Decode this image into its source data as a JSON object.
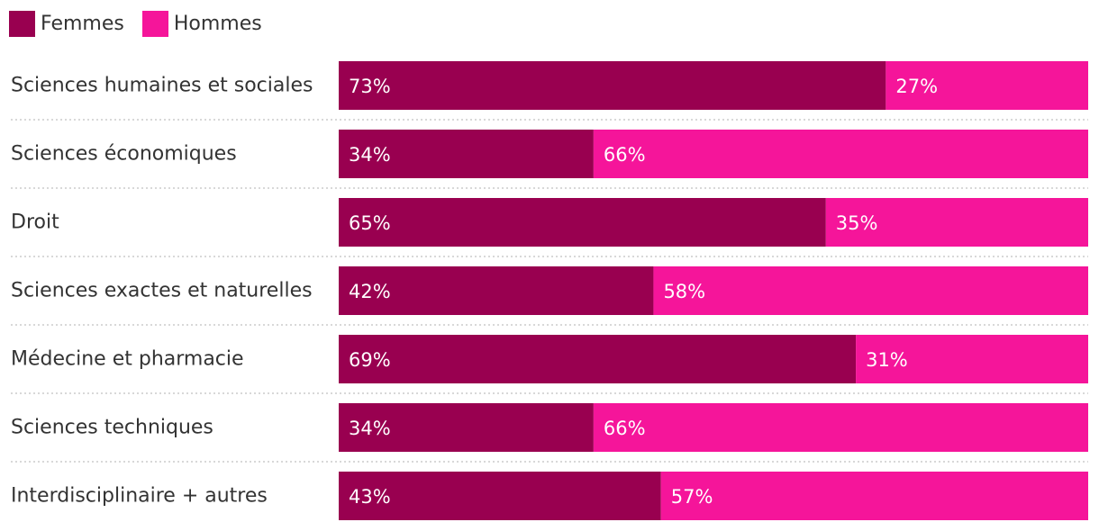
{
  "colors": {
    "femmes": "#990050",
    "hommes": "#f5159a",
    "separator": "#cccccc",
    "label_text": "#ffffff"
  },
  "legend": [
    {
      "name": "Femmes",
      "color": "#990050"
    },
    {
      "name": "Hommes",
      "color": "#f5159a"
    }
  ],
  "chart_data": {
    "type": "bar",
    "orientation": "horizontal",
    "stacked": true,
    "normalized": true,
    "categories": [
      "Sciences humaines et sociales",
      "Sciences économiques",
      "Droit",
      "Sciences exactes et naturelles",
      "Médecine et pharmacie",
      "Sciences techniques",
      "Interdisciplinaire + autres"
    ],
    "series": [
      {
        "name": "Femmes",
        "values": [
          73,
          34,
          65,
          42,
          69,
          34,
          43
        ],
        "labels": [
          "73%",
          "34%",
          "65%",
          "42%",
          "69%",
          "34%",
          "43%"
        ]
      },
      {
        "name": "Hommes",
        "values": [
          27,
          66,
          35,
          58,
          31,
          66,
          57
        ],
        "labels": [
          "27%",
          "66%",
          "35%",
          "58%",
          "31%",
          "66%",
          "57%"
        ]
      }
    ],
    "unit": "%",
    "xlim": [
      0,
      100
    ],
    "legend_position": "top-left",
    "grid": false
  }
}
